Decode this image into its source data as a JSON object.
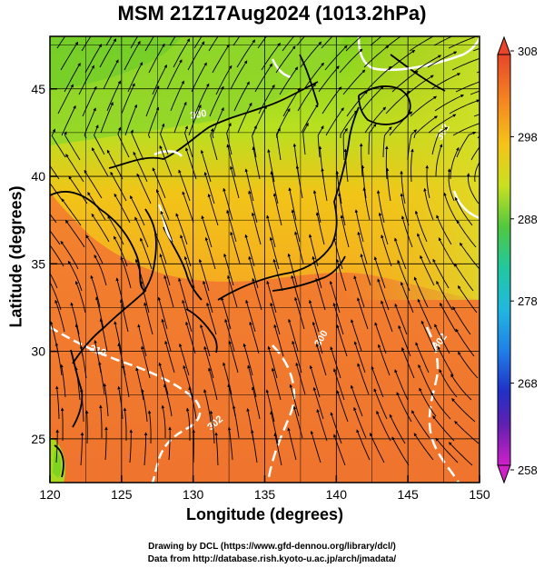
{
  "title": "MSM 21Z17Aug2024 (1013.2hPa)",
  "x_axis": {
    "label": "Longitude (degrees)",
    "ticks": [
      "120",
      "125",
      "130",
      "135",
      "140",
      "145",
      "150"
    ]
  },
  "y_axis": {
    "label": "Latitude  (degrees)",
    "ticks": [
      "25",
      "30",
      "35",
      "40",
      "45"
    ]
  },
  "colorbar": {
    "ticks": [
      "308",
      "298",
      "288",
      "278",
      "268",
      "258"
    ],
    "min": 258,
    "max": 308
  },
  "footer": {
    "line1": "Drawing by DCL (https://www.gfd-dennou.org/library/dcl/)",
    "line2": "Data from http://database.rish.kyoto-u.ac.jp/arch/jmadata/"
  },
  "contour_labels": [
    "310",
    "300",
    "300",
    "302",
    "302",
    "302"
  ],
  "map": {
    "extent": {
      "lon": [
        120,
        150
      ],
      "lat": [
        22.5,
        48
      ]
    },
    "grid": true,
    "colors": {
      "warm": "#f07a30",
      "mid": "#f5c020",
      "cool": "#8bd820"
    }
  }
}
